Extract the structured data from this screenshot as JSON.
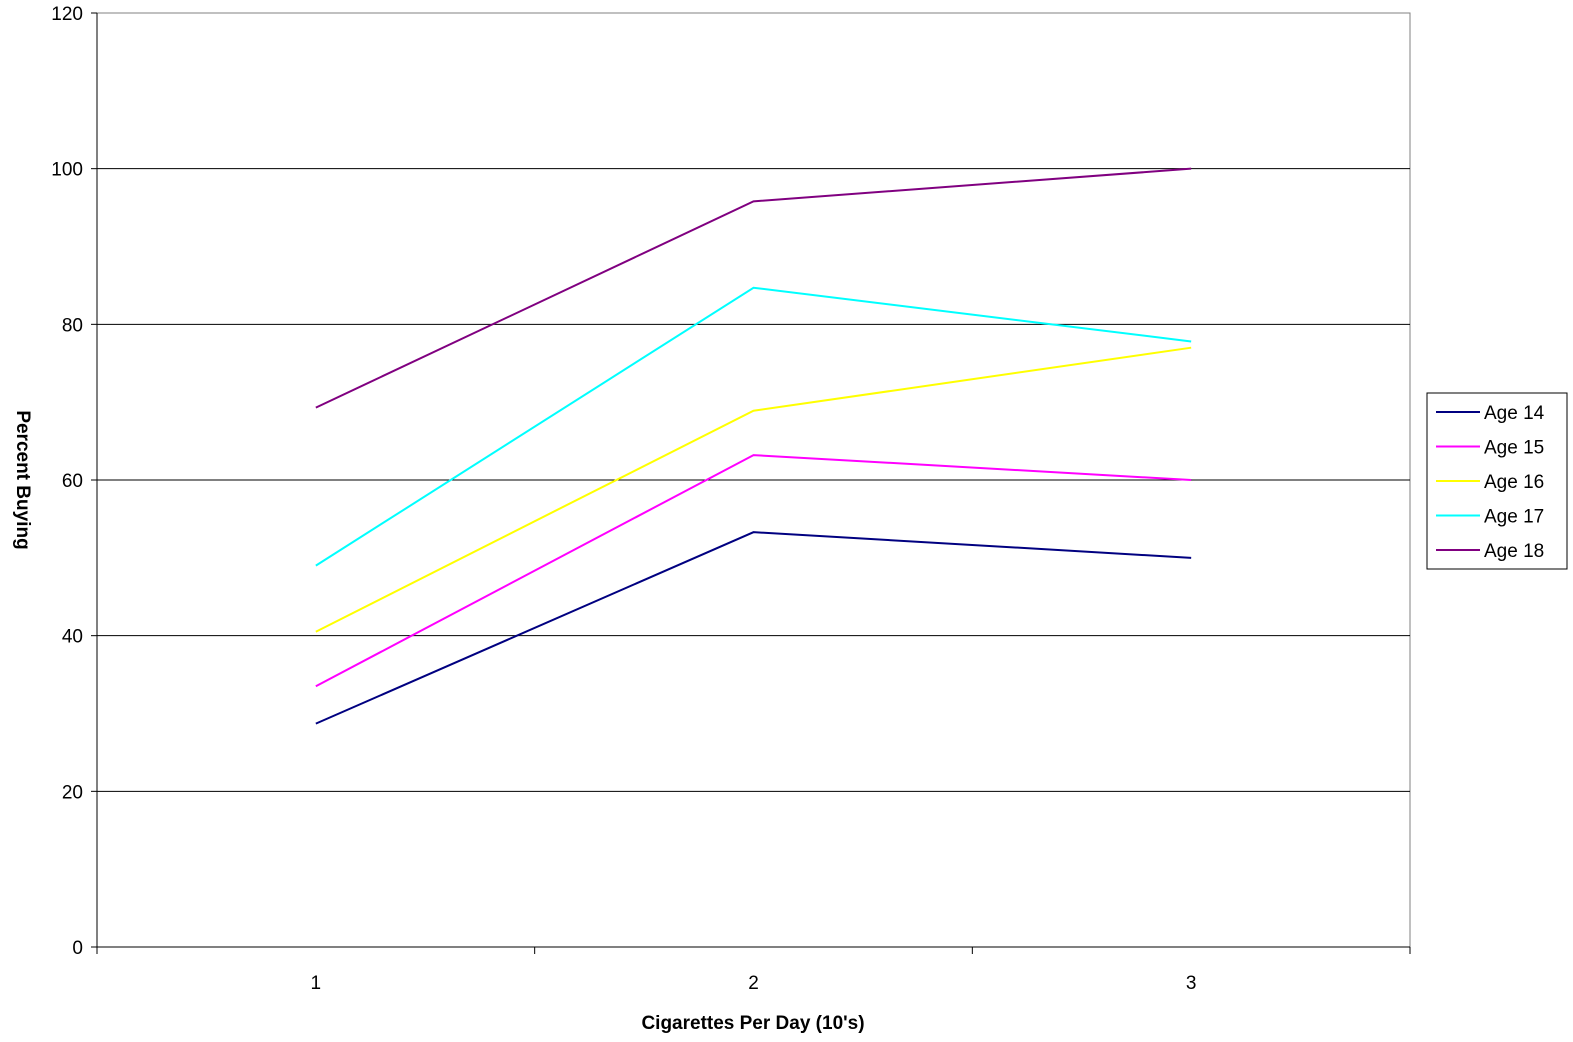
{
  "chart_data": {
    "type": "line",
    "title": "",
    "xlabel": "Cigarettes Per Day (10's)",
    "ylabel": "Percent Buying",
    "categories": [
      "1",
      "2",
      "3"
    ],
    "ylim": [
      0,
      120
    ],
    "yticks": [
      "0",
      "20",
      "40",
      "60",
      "80",
      "100",
      "120"
    ],
    "ytick_values": [
      0,
      20,
      40,
      60,
      80,
      100,
      120
    ],
    "grid": "horizontal at 20, 40, 60, 80, 100",
    "legend_position": "right",
    "series": [
      {
        "name": "Age 14",
        "color": "#000080",
        "values": [
          28.7,
          53.3,
          50.0
        ]
      },
      {
        "name": "Age 15",
        "color": "#ff00ff",
        "values": [
          33.5,
          63.2,
          60.0
        ]
      },
      {
        "name": "Age 16",
        "color": "#ffff00",
        "values": [
          40.5,
          68.9,
          77.0
        ]
      },
      {
        "name": "Age 17",
        "color": "#00ffff",
        "values": [
          49.0,
          84.7,
          77.8
        ]
      },
      {
        "name": "Age 18",
        "color": "#800080",
        "values": [
          69.3,
          95.8,
          100.0
        ]
      }
    ]
  }
}
